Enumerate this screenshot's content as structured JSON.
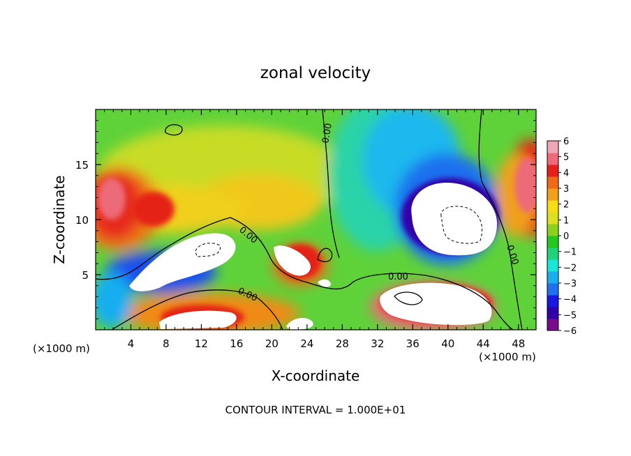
{
  "chart_data": {
    "type": "heatmap",
    "title": "zonal velocity",
    "xlabel": "X-coordinate",
    "ylabel": "Z-coordinate",
    "x_unit_label": "(×1000 m)",
    "z_unit_label": "(×1000 m)",
    "xlim": [
      0,
      50
    ],
    "ylim": [
      0,
      20
    ],
    "x_ticks": [
      4,
      8,
      12,
      16,
      20,
      24,
      28,
      32,
      36,
      40,
      44,
      48
    ],
    "y_ticks": [
      5,
      10,
      15
    ],
    "colorbar": {
      "ticks": [
        6,
        5,
        4,
        3,
        2,
        1,
        0,
        -1,
        -2,
        -3,
        -4,
        -5,
        -6
      ],
      "colors": [
        "#7a0a8c",
        "#3000a8",
        "#1818e0",
        "#1f6fee",
        "#18aef0",
        "#18e6d8",
        "#20d27a",
        "#22c81e",
        "#8ad21c",
        "#dce01e",
        "#f7dc16",
        "#f0a01a",
        "#ee6a16",
        "#e52018",
        "#ed6a78",
        "#f0a8b8"
      ]
    },
    "annotation": "CONTOUR INTERVAL = 1.000E+01",
    "contour_labels": [
      "0.00",
      "0.00",
      "0.00",
      "0.00",
      "0.00"
    ],
    "grid": false
  }
}
